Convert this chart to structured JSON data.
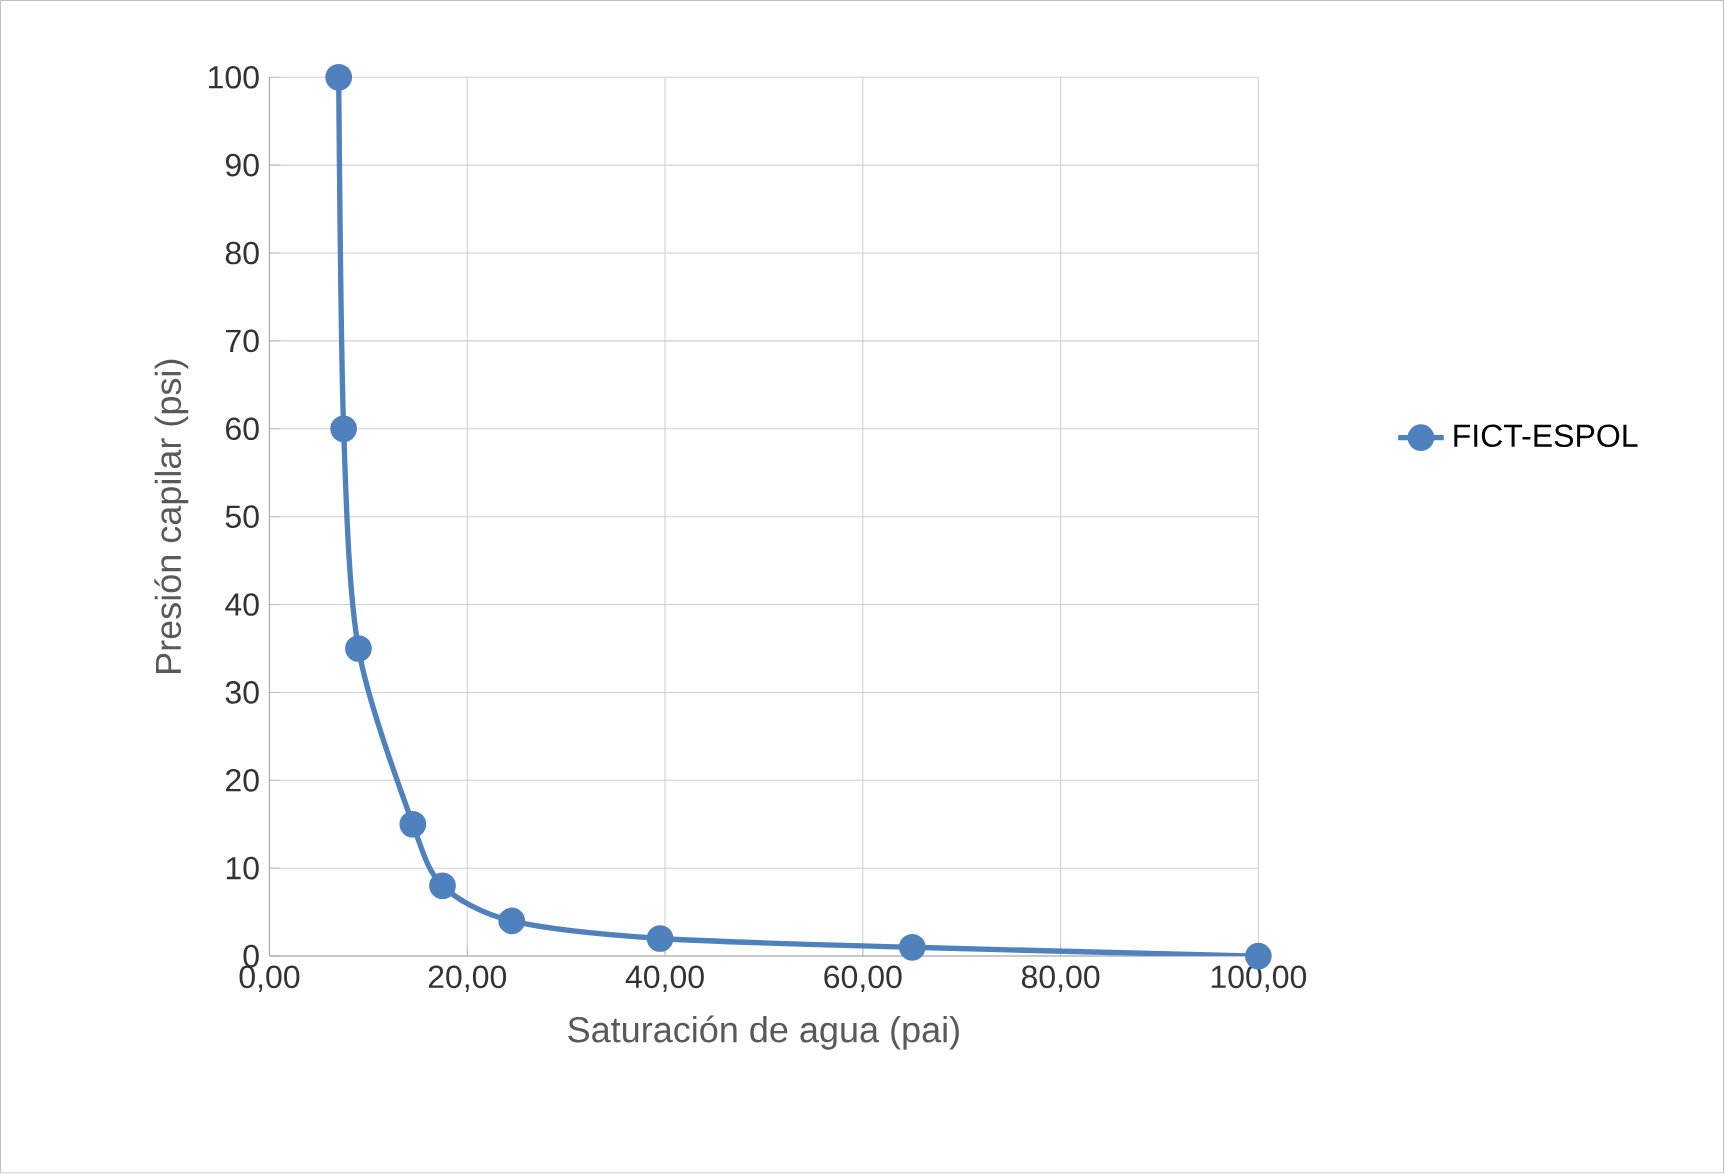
{
  "chart_data": {
    "type": "line",
    "xlabel": "Saturación de agua (pai)",
    "ylabel": "Presión capilar (psi)",
    "series": [
      {
        "name": "FICT-ESPOL",
        "color": "#4f81bd",
        "x": [
          7,
          7.5,
          9,
          14.5,
          17.5,
          24.5,
          39.5,
          65,
          100
        ],
        "values": [
          100,
          60,
          35,
          15,
          8,
          4,
          2,
          1,
          0
        ]
      }
    ],
    "xlim": [
      0,
      100
    ],
    "ylim": [
      0,
      100
    ],
    "xticks": [
      {
        "value": 0,
        "label": "0,00"
      },
      {
        "value": 20,
        "label": "20,00"
      },
      {
        "value": 40,
        "label": "40,00"
      },
      {
        "value": 60,
        "label": "60,00"
      },
      {
        "value": 80,
        "label": "80,00"
      },
      {
        "value": 100,
        "label": "100,00"
      }
    ],
    "yticks": [
      0,
      10,
      20,
      30,
      40,
      50,
      60,
      70,
      80,
      90,
      100
    ],
    "grid": true,
    "legend": "right",
    "marker": "circle",
    "line_style": "solid"
  }
}
